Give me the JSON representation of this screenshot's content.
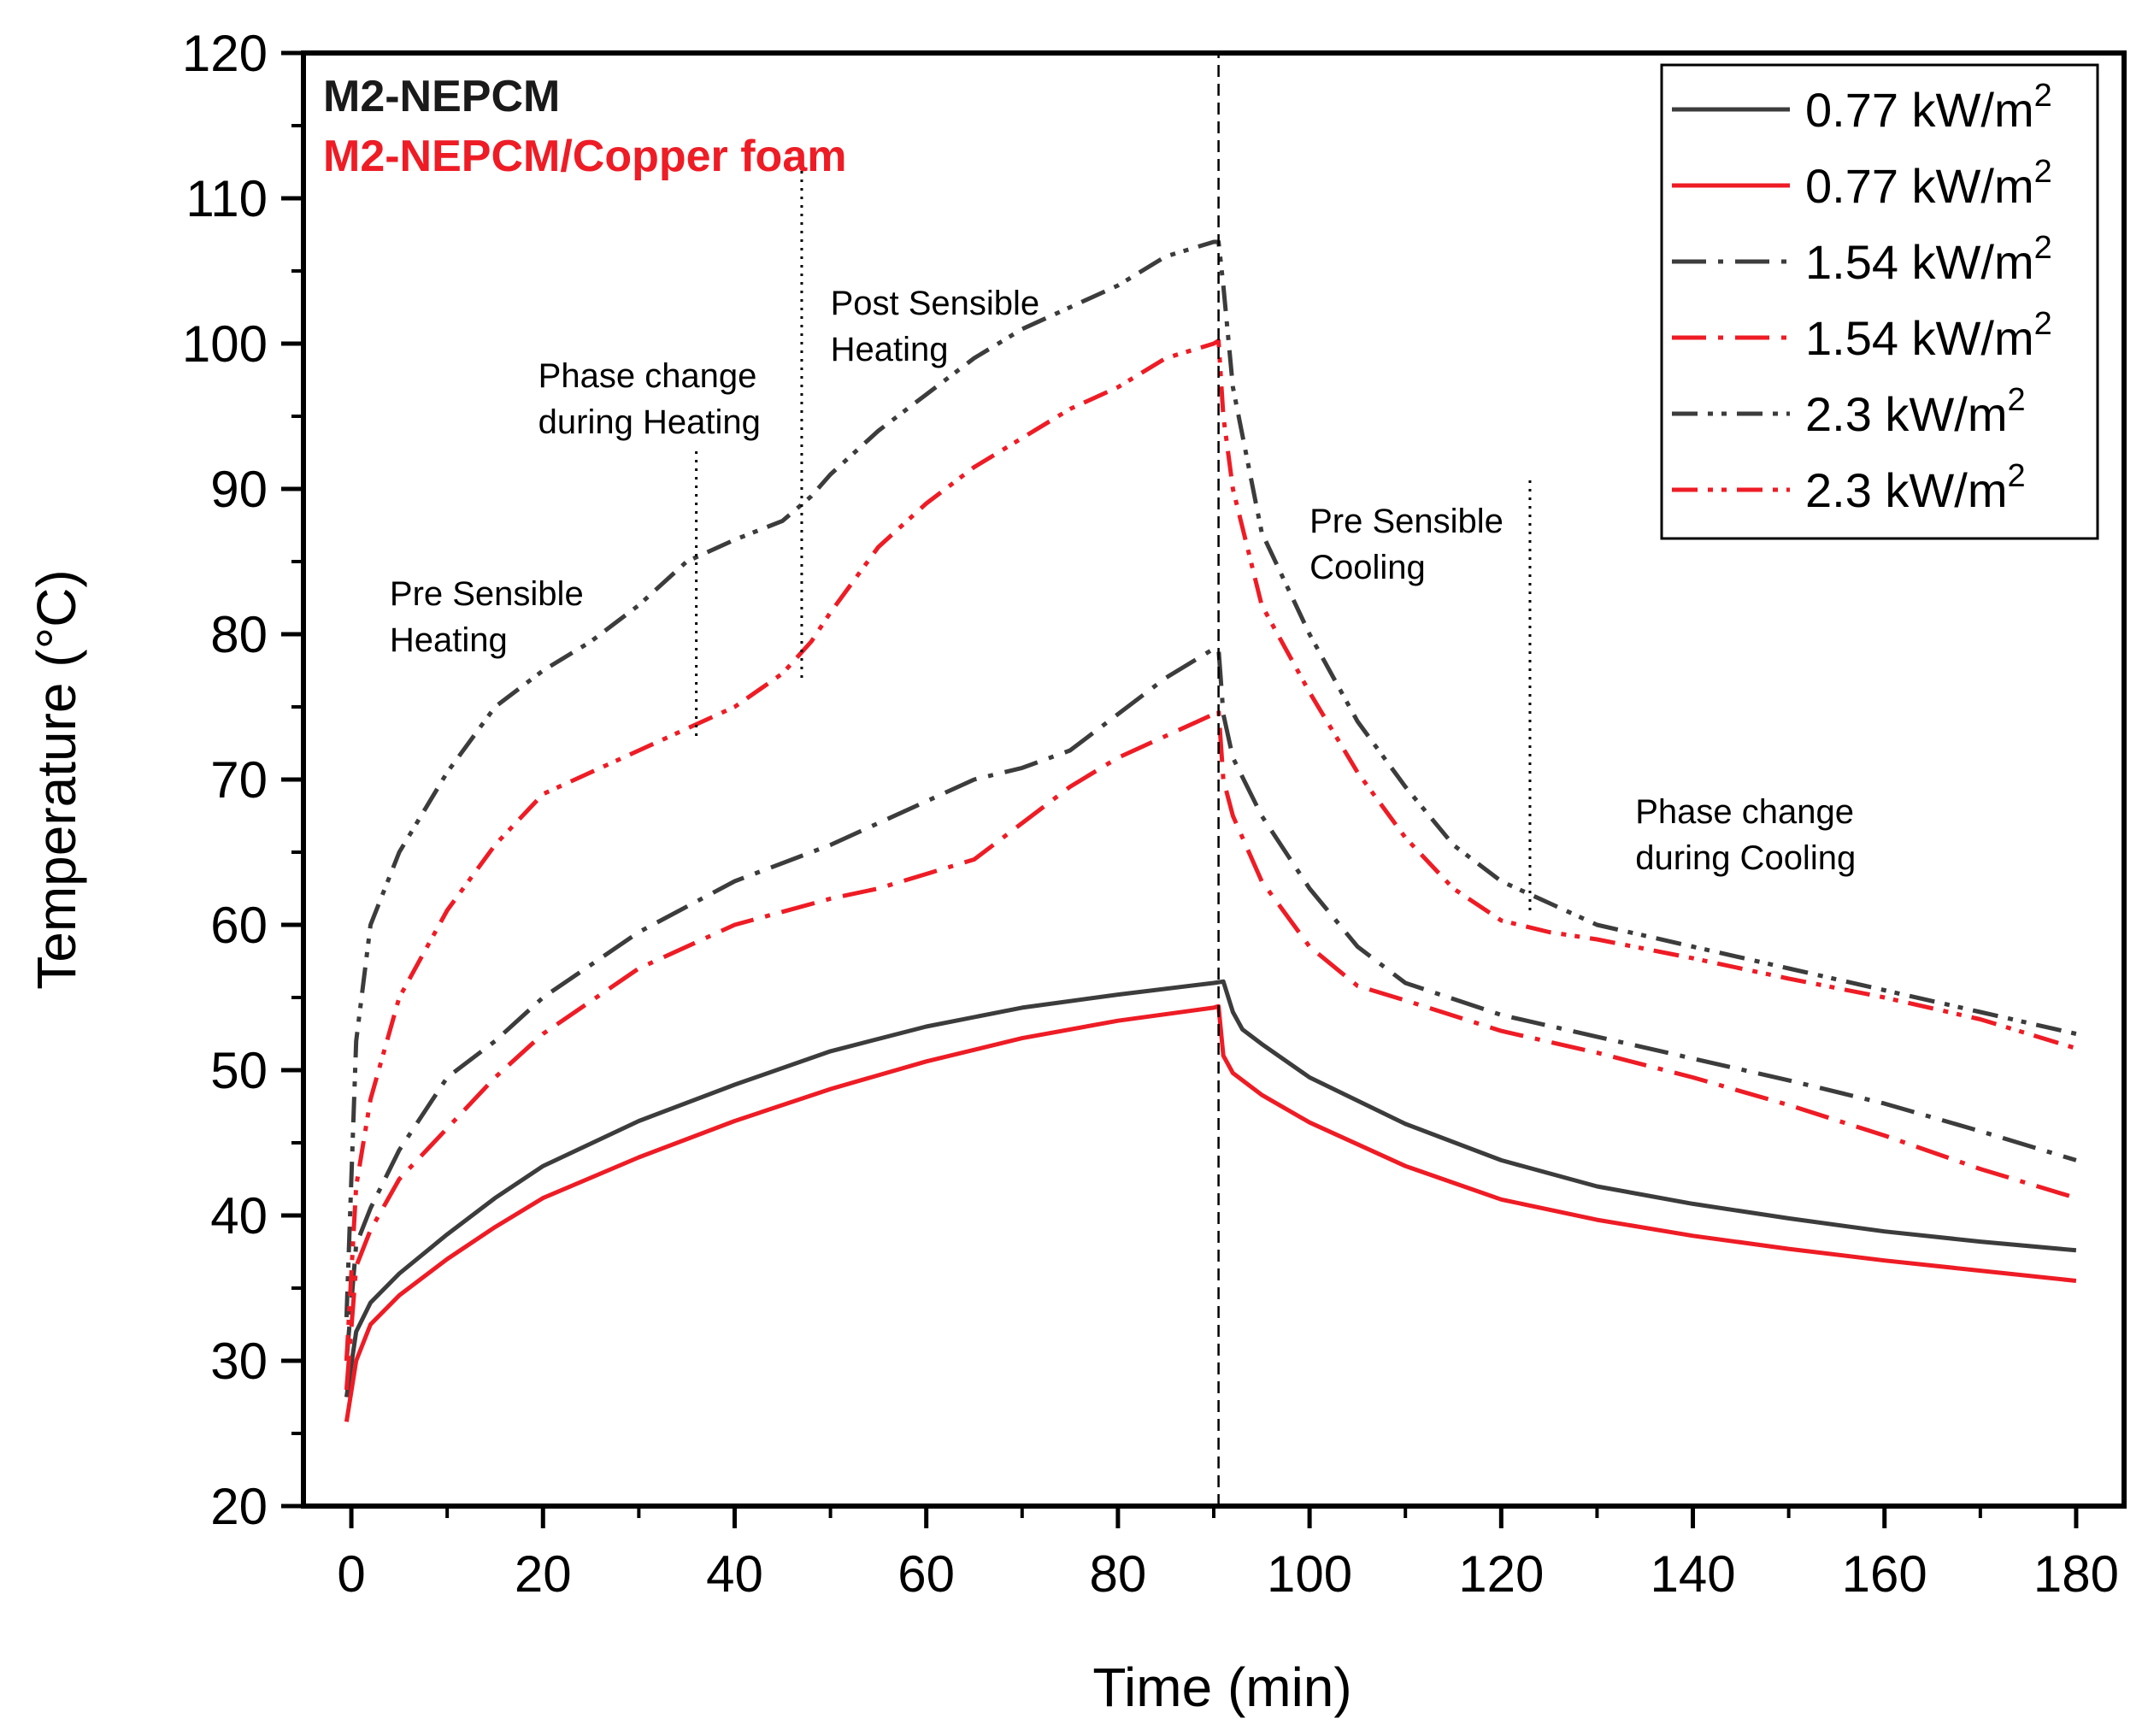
{
  "chart_data": {
    "type": "line",
    "xlabel": "Time (min)",
    "ylabel": "Temperature (°C)",
    "xlim": [
      -5,
      185
    ],
    "ylim": [
      20,
      120
    ],
    "x_ticks": [
      0,
      20,
      40,
      60,
      80,
      100,
      120,
      140,
      160,
      180
    ],
    "y_ticks": [
      20,
      30,
      40,
      50,
      60,
      70,
      80,
      90,
      100,
      110,
      120
    ],
    "grid": false,
    "legend_position": "top-right",
    "corner_labels": [
      {
        "text": "M2-NEPCM",
        "color": "#1a1a1a"
      },
      {
        "text": "M2-NEPCM/Copper foam",
        "color": "#ee1c25"
      }
    ],
    "annotations": [
      {
        "lines": [
          "Pre Sensible",
          "Heating"
        ],
        "x": 4,
        "y": 82
      },
      {
        "lines": [
          "Phase change",
          "during Heating"
        ],
        "x": 19.5,
        "y": 97
      },
      {
        "lines": [
          "Post Sensible",
          "Heating"
        ],
        "x": 50,
        "y": 102
      },
      {
        "lines": [
          "Pre Sensible",
          "Cooling"
        ],
        "x": 100,
        "y": 87
      },
      {
        "lines": [
          "Phase change",
          "during Cooling"
        ],
        "x": 134,
        "y": 67
      }
    ],
    "reference_lines": [
      {
        "x": 90.5,
        "y_from": 20,
        "y_to": 120,
        "style": "dashed"
      },
      {
        "x": 36,
        "y_from": 73,
        "y_to": 93,
        "style": "dotted"
      },
      {
        "x": 47,
        "y_from": 77,
        "y_to": 112,
        "style": "dotted"
      },
      {
        "x": 123,
        "y_from": 61,
        "y_to": 91,
        "style": "dotted"
      }
    ],
    "series": [
      {
        "name": "0.77 kW/m",
        "superscript": "2",
        "color": "#3c3c3c",
        "dash": "solid",
        "x": [
          -0.5,
          0.5,
          2,
          5,
          10,
          15,
          20,
          30,
          40,
          50,
          60,
          70,
          80,
          90,
          91,
          92,
          93,
          95,
          100,
          110,
          120,
          130,
          140,
          150,
          160,
          170,
          180
        ],
        "y": [
          27.5,
          32,
          34,
          36,
          38.7,
          41.2,
          43.4,
          46.5,
          49,
          51.3,
          53,
          54.3,
          55.2,
          56,
          56.1,
          54,
          52.8,
          51.8,
          49.5,
          46.3,
          43.8,
          42,
          40.8,
          39.8,
          38.9,
          38.2,
          37.6
        ]
      },
      {
        "name": "0.77 kW/m",
        "superscript": "2",
        "color": "#ee1c25",
        "dash": "solid",
        "x": [
          -0.5,
          0.5,
          2,
          5,
          10,
          15,
          20,
          30,
          40,
          50,
          60,
          70,
          80,
          90,
          90.5,
          91,
          92,
          95,
          100,
          110,
          120,
          130,
          140,
          150,
          160,
          170,
          180
        ],
        "y": [
          25.8,
          30,
          32.5,
          34.5,
          37,
          39.2,
          41.2,
          44,
          46.5,
          48.7,
          50.6,
          52.2,
          53.4,
          54.3,
          54.4,
          51,
          49.8,
          48.3,
          46.4,
          43.4,
          41.1,
          39.7,
          38.6,
          37.7,
          36.9,
          36.2,
          35.5
        ]
      },
      {
        "name": "1.54 kW/m",
        "superscript": "2",
        "color": "#3c3c3c",
        "dash": "dashdot",
        "x": [
          -0.5,
          0.5,
          2,
          5,
          10,
          15,
          20,
          30,
          40,
          50,
          55,
          60,
          65,
          70,
          75,
          80,
          85,
          90,
          90.5,
          91,
          92,
          95,
          100,
          105,
          110,
          120,
          130,
          140,
          150,
          160,
          170,
          180
        ],
        "y": [
          30,
          38,
          40.5,
          44.5,
          49.5,
          52,
          55,
          59.5,
          63,
          65.5,
          67,
          68.5,
          70,
          70.8,
          72,
          74.5,
          77,
          79,
          79,
          74.5,
          71.5,
          67.5,
          62.5,
          58.5,
          56,
          53.8,
          52.3,
          50.8,
          49.3,
          47.7,
          45.8,
          43.8
        ]
      },
      {
        "name": "1.54 kW/m",
        "superscript": "2",
        "color": "#ee1c25",
        "dash": "dashdot",
        "x": [
          -0.5,
          0.5,
          2,
          5,
          10,
          15,
          20,
          30,
          40,
          50,
          55,
          60,
          65,
          70,
          75,
          80,
          85,
          90,
          90.5,
          91,
          92,
          95,
          100,
          105,
          110,
          120,
          130,
          140,
          150,
          160,
          170,
          180
        ],
        "y": [
          28,
          36.5,
          39,
          42.5,
          46,
          49.5,
          52.5,
          57,
          60,
          61.8,
          62.5,
          63.5,
          64.5,
          67,
          69.5,
          71.5,
          73,
          74.5,
          74.8,
          70,
          67.5,
          63,
          58.5,
          55.8,
          54.8,
          52.7,
          51.2,
          49.5,
          47.6,
          45.5,
          43.2,
          41.2
        ]
      },
      {
        "name": "2.3 kW/m",
        "superscript": "2",
        "color": "#3c3c3c",
        "dash": "dashdotdot",
        "x": [
          -0.5,
          0.5,
          2,
          5,
          10,
          15,
          20,
          25,
          30,
          35,
          40,
          45,
          48,
          50,
          55,
          60,
          65,
          70,
          75,
          80,
          85,
          90,
          90.5,
          91,
          92,
          95,
          100,
          105,
          110,
          115,
          120,
          125,
          130,
          140,
          150,
          160,
          170,
          180
        ],
        "y": [
          33,
          52,
          60,
          65,
          70.5,
          75,
          77.5,
          79.5,
          82,
          85,
          86.5,
          87.8,
          89.5,
          91,
          94,
          96.5,
          99,
          101,
          102.5,
          104,
          106,
          107,
          107,
          104,
          97,
          87,
          80,
          74,
          69.5,
          65.5,
          63,
          61.5,
          60,
          58.5,
          57,
          55.5,
          54,
          52.5
        ]
      },
      {
        "name": "2.3 kW/m",
        "superscript": "2",
        "color": "#ee1c25",
        "dash": "dashdotdot",
        "x": [
          -0.5,
          0.5,
          2,
          5,
          10,
          15,
          20,
          25,
          30,
          35,
          40,
          45,
          48,
          50,
          55,
          60,
          65,
          70,
          75,
          80,
          85,
          90,
          90.5,
          91,
          92,
          95,
          100,
          105,
          110,
          115,
          120,
          125,
          130,
          140,
          150,
          160,
          170,
          180
        ],
        "y": [
          30,
          42,
          48,
          55,
          61,
          65.5,
          69,
          70.5,
          72,
          73.5,
          75,
          77.3,
          79.5,
          81.5,
          86,
          89,
          91.5,
          93.5,
          95.5,
          97,
          99,
          100,
          100.2,
          95,
          90,
          82,
          76,
          70.5,
          66,
          62.5,
          60.3,
          59.5,
          59,
          57.7,
          56.3,
          55,
          53.5,
          51.5
        ]
      }
    ]
  }
}
